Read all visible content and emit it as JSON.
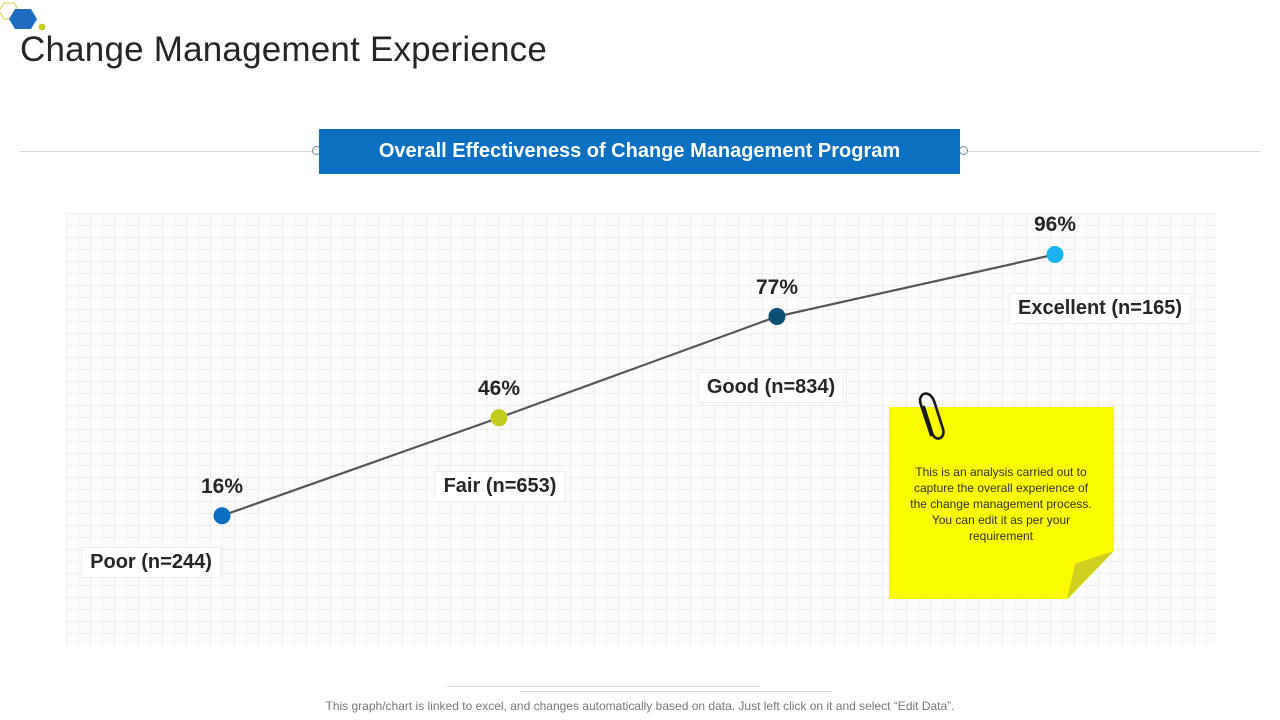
{
  "page": {
    "title": "Change Management Experience",
    "banner": "Overall Effectiveness of Change Management Program",
    "note": "This is an analysis carried out to capture the overall experience of the change management process. You can edit it as per your requirement",
    "footnote": "This graph/chart is linked to excel, and changes automatically based on data. Just left click on it and select “Edit Data”."
  },
  "colors": {
    "banner": "#0b70c1",
    "line": "#555555",
    "note": "#fbfb00"
  },
  "chart_data": {
    "type": "line",
    "title": "Overall Effectiveness of Change Management Program",
    "categories": [
      "Poor (n=244)",
      "Fair (n=653)",
      "Good (n=834)",
      "Excellent (n=165)"
    ],
    "values": [
      16,
      46,
      77,
      96
    ],
    "value_labels": [
      "16%",
      "46%",
      "77%",
      "96%"
    ],
    "point_colors": [
      "#0b6dc1",
      "#c3cc1e",
      "#0b4f72",
      "#1ab2ef"
    ],
    "unit": "%",
    "ylim": [
      0,
      100
    ],
    "grid": true,
    "legend": "none"
  }
}
